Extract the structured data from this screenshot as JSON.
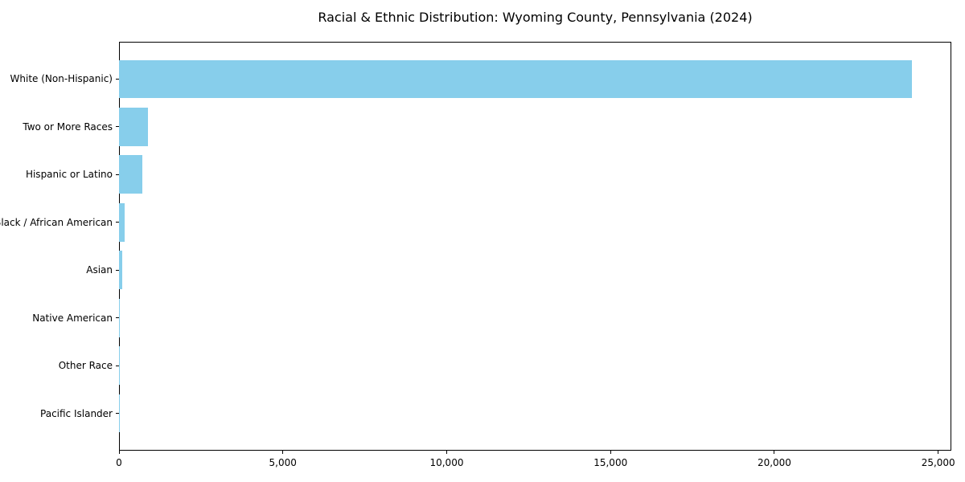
{
  "title": "Racial & Ethnic Distribution: Wyoming County, Pennsylvania (2024)",
  "chart_data": {
    "type": "bar",
    "orientation": "horizontal",
    "title": "Racial & Ethnic Distribution: Wyoming County, Pennsylvania (2024)",
    "xlabel": "",
    "ylabel": "",
    "categories": [
      "White (Non-Hispanic)",
      "Two or More Races",
      "Hispanic or Latino",
      "Black / African American",
      "Asian",
      "Native American",
      "Other Race",
      "Pacific Islander"
    ],
    "values": [
      24200,
      890,
      700,
      180,
      90,
      10,
      6,
      2
    ],
    "bar_color": "#87CEEB",
    "axis_color": "#000000",
    "text_color": "#000000",
    "background": "#ffffff",
    "grid": false,
    "legend": null,
    "xlim": [
      0,
      25400
    ],
    "x_ticks": [
      0,
      5000,
      10000,
      15000,
      20000,
      25000
    ],
    "x_tick_labels": [
      "0",
      "5,000",
      "10,000",
      "15,000",
      "20,000",
      "25,000"
    ]
  }
}
